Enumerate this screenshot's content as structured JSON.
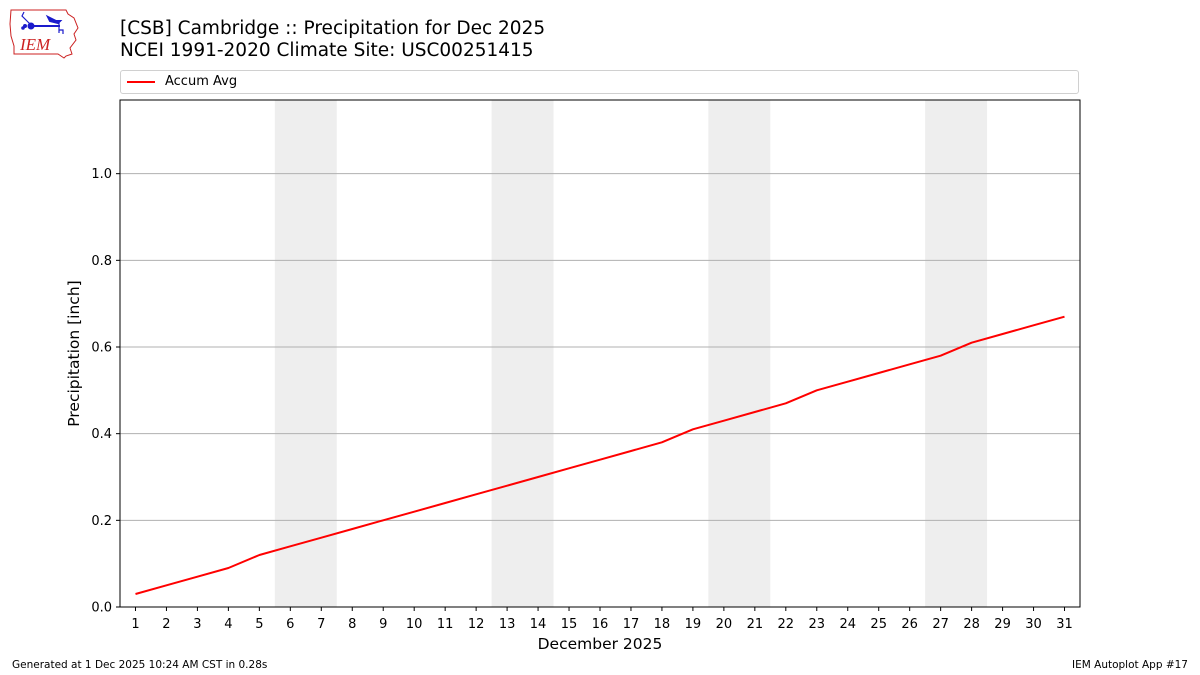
{
  "header": {
    "title_line1": "[CSB] Cambridge :: Precipitation for Dec 2025",
    "title_line2": "NCEI 1991-2020 Climate Site: USC00251415",
    "logo_text": "IEM",
    "logo_icon": "iem-iowa-logo-icon"
  },
  "legend": {
    "items": [
      {
        "label": "Accum Avg",
        "color": "#ff0000"
      }
    ]
  },
  "footer": {
    "generated": "Generated at 1 Dec 2025 10:24 AM CST in 0.28s",
    "app": "IEM Autoplot App #17"
  },
  "colors": {
    "line": "#ff0000",
    "weekend_shade": "#eeeeee",
    "grid": "#b0b0b0",
    "logo_red": "#cc2222",
    "logo_blue": "#1a1acc"
  },
  "chart_data": {
    "type": "line",
    "title": "[CSB] Cambridge :: Precipitation for Dec 2025\nNCEI 1991-2020 Climate Site: USC00251415",
    "xlabel": "December 2025",
    "ylabel": "Precipitation [inch]",
    "x": [
      1,
      2,
      3,
      4,
      5,
      6,
      7,
      8,
      9,
      10,
      11,
      12,
      13,
      14,
      15,
      16,
      17,
      18,
      19,
      20,
      21,
      22,
      23,
      24,
      25,
      26,
      27,
      28,
      29,
      30,
      31
    ],
    "series": [
      {
        "name": "Accum Avg",
        "color": "#ff0000",
        "values": [
          0.03,
          0.05,
          0.07,
          0.09,
          0.12,
          0.14,
          0.16,
          0.18,
          0.2,
          0.22,
          0.24,
          0.26,
          0.28,
          0.3,
          0.32,
          0.34,
          0.36,
          0.38,
          0.41,
          0.43,
          0.45,
          0.47,
          0.5,
          0.52,
          0.54,
          0.56,
          0.58,
          0.61,
          0.63,
          0.65,
          0.67
        ]
      }
    ],
    "xticks": [
      "1",
      "2",
      "3",
      "4",
      "5",
      "6",
      "7",
      "8",
      "9",
      "10",
      "11",
      "12",
      "13",
      "14",
      "15",
      "16",
      "17",
      "18",
      "19",
      "20",
      "21",
      "22",
      "23",
      "24",
      "25",
      "26",
      "27",
      "28",
      "29",
      "30",
      "31"
    ],
    "yticks": [
      "0.0",
      "0.2",
      "0.4",
      "0.6",
      "0.8",
      "1.0"
    ],
    "ytick_values": [
      0.0,
      0.2,
      0.4,
      0.6,
      0.8,
      1.0
    ],
    "xlim": [
      0.5,
      31.5
    ],
    "ylim": [
      0,
      1.17
    ],
    "grid": "y",
    "legend_position": "top, above plot",
    "weekend_shading": [
      [
        6,
        7
      ],
      [
        13,
        14
      ],
      [
        20,
        21
      ],
      [
        27,
        28
      ]
    ]
  }
}
